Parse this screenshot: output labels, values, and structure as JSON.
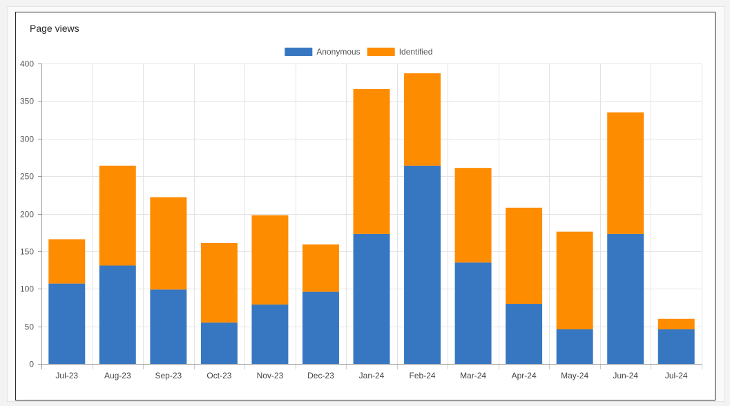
{
  "panel": {
    "title": "Page views"
  },
  "chart_data": {
    "type": "bar",
    "stacked": true,
    "categories": [
      "Jul-23",
      "Aug-23",
      "Sep-23",
      "Oct-23",
      "Nov-23",
      "Dec-23",
      "Jan-24",
      "Feb-24",
      "Mar-24",
      "Apr-24",
      "May-24",
      "Jun-24",
      "Jul-24"
    ],
    "series": [
      {
        "name": "Anonymous",
        "color": "#3777c2",
        "values": [
          107,
          131,
          99,
          55,
          79,
          96,
          173,
          264,
          135,
          80,
          46,
          173,
          46
        ]
      },
      {
        "name": "Identified",
        "color": "#fe8c00",
        "values": [
          59,
          133,
          123,
          106,
          119,
          63,
          193,
          123,
          126,
          128,
          130,
          162,
          14
        ]
      }
    ],
    "ylim": [
      0,
      400
    ],
    "yticks": [
      0,
      50,
      100,
      150,
      200,
      250,
      300,
      350,
      400
    ],
    "grid": true,
    "legend_position": "top-center"
  }
}
